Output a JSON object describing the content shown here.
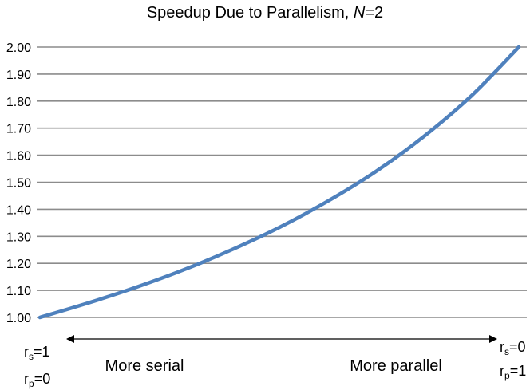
{
  "chart_data": {
    "type": "line",
    "title": "Speedup Due to Parallelism, ",
    "title_var": "N",
    "title_suffix": "=2",
    "ylim": [
      1.0,
      2.0
    ],
    "y_ticks": [
      "1.00",
      "1.10",
      "1.20",
      "1.30",
      "1.40",
      "1.50",
      "1.60",
      "1.70",
      "1.80",
      "1.90",
      "2.00"
    ],
    "grid": true,
    "series": [
      {
        "color": "#4f81bd",
        "x": [
          0,
          0.1,
          0.2,
          0.3,
          0.4,
          0.5,
          0.6,
          0.7,
          0.8,
          0.9,
          1.0
        ],
        "values": [
          1.0,
          1.053,
          1.111,
          1.176,
          1.25,
          1.333,
          1.429,
          1.538,
          1.667,
          1.818,
          2.0
        ]
      }
    ]
  },
  "axis_arrow": {
    "left_label": "More serial",
    "right_label": "More parallel",
    "left_rs": {
      "base": "r",
      "sub": "s",
      "rest": "=1"
    },
    "left_rp": {
      "base": "r",
      "sub": "p",
      "rest": "=0"
    },
    "right_rs": {
      "base": "r",
      "sub": "s",
      "rest": "=0"
    },
    "right_rp": {
      "base": "r",
      "sub": "p",
      "rest": "=1"
    }
  }
}
